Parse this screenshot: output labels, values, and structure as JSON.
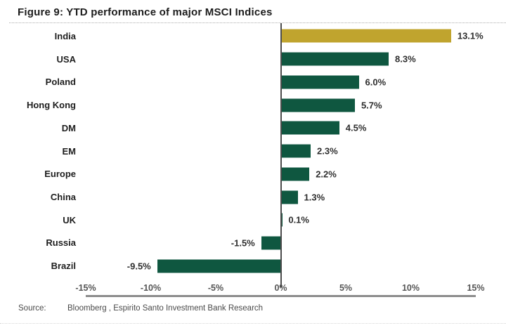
{
  "figure": {
    "title": "Figure 9: YTD performance of major MSCI Indices",
    "source_label": "Source:",
    "source_text": "Bloomberg , Espirito Santo Investment Bank Research"
  },
  "chart_data": {
    "type": "bar",
    "orientation": "horizontal",
    "title": "Figure 9: YTD performance of major MSCI Indices",
    "categories": [
      "India",
      "USA",
      "Poland",
      "Hong Kong",
      "DM",
      "EM",
      "Europe",
      "China",
      "UK",
      "Russia",
      "Brazil"
    ],
    "values": [
      13.1,
      8.3,
      6.0,
      5.7,
      4.5,
      2.3,
      2.2,
      1.3,
      0.1,
      -1.5,
      -9.5
    ],
    "value_labels": [
      "13.1%",
      "8.3%",
      "6.0%",
      "5.7%",
      "4.5%",
      "2.3%",
      "2.2%",
      "1.3%",
      "0.1%",
      "-1.5%",
      "-9.5%"
    ],
    "x_ticks": [
      "-15%",
      "-10%",
      "-5%",
      "0%",
      "5%",
      "10%",
      "15%"
    ],
    "xlim": [
      -15,
      15
    ],
    "grid": false,
    "legend": "none",
    "highlight_category": "India",
    "colors": {
      "default_bar": "#0F5740",
      "highlight_bar": "#C0A42E",
      "axis_line": "#8C8C8C",
      "zero_line": "#4D4D4D"
    }
  }
}
